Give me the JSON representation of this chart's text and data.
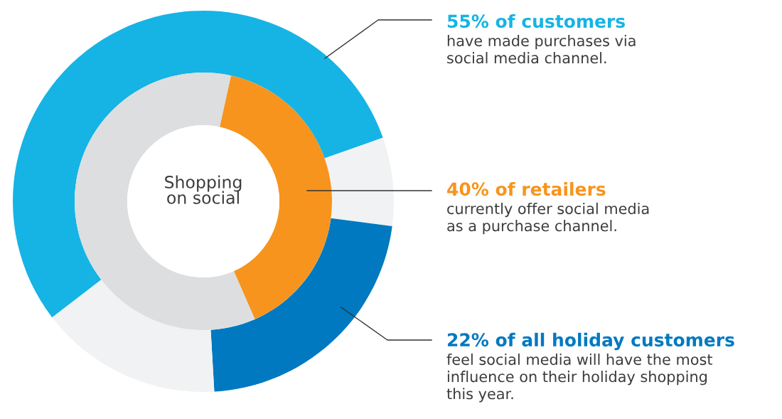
{
  "chart_data": {
    "type": "donut",
    "title": "Shopping\non social",
    "series": [
      {
        "values": [
          55,
          7.5,
          22,
          15.5
        ],
        "colors": [
          "#15b4e4",
          "#f1f2f3",
          "#0079c1",
          "#f1f2f3"
        ]
      },
      {
        "values": [
          40,
          60
        ],
        "colors": [
          "#f7941d",
          "#dcdee0"
        ]
      }
    ],
    "annotations": [
      "55% of customers",
      "have made purchases via\nsocial media channel.",
      "40% of retailers",
      "currently offer social media\nas a purchase channel.",
      "22% of all holiday customers",
      "feel social media will have the most\ninfluence on their holiday shopping\nthis year."
    ]
  }
}
